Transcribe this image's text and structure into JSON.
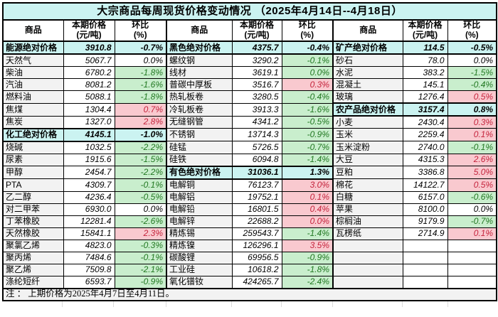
{
  "title": "大宗商品每周现货价格变动情况 （2025年4月14日--4月18日）",
  "columns": {
    "name": "商品",
    "price_line1": "本期价格",
    "price_line2": "(元/吨)",
    "pct_line1": "环比",
    "pct_line2": "(%)"
  },
  "footer": {
    "note": "注 ： 上期价格为2025年4月7日至4月11日。"
  },
  "colors": {
    "section_bg": "#cbf3f1",
    "title_bg": "#cbf3f1",
    "increase_bg": "#f9c9cf",
    "increase_text": "#c5233c",
    "decrease_bg": "#c9eecd",
    "decrease_text": "#217821",
    "name_column_bg": "#f2f2f2",
    "border": "#000000"
  },
  "groups": [
    {
      "rows": [
        {
          "name": "能源绝对价格",
          "price": "3910.8",
          "pct": "-0.7%",
          "type": "section"
        },
        {
          "name": "天然气",
          "price": "5067.7",
          "pct": "0.0%",
          "type": "flat"
        },
        {
          "name": "柴油",
          "price": "6780.2",
          "pct": "-1.8%",
          "type": "down"
        },
        {
          "name": "汽油",
          "price": "8081.2",
          "pct": "-1.6%",
          "type": "down"
        },
        {
          "name": "燃料油",
          "price": "5088.1",
          "pct": "-1.8%",
          "type": "down"
        },
        {
          "name": "焦煤",
          "price": "1304.4",
          "pct": "0.7%",
          "type": "up"
        },
        {
          "name": "焦炭",
          "price": "1327.0",
          "pct": "2.8%",
          "type": "up"
        },
        {
          "name": "化工绝对价格",
          "price": "4145.1",
          "pct": "-1.0%",
          "type": "section"
        },
        {
          "name": "烧碱",
          "price": "1032.5",
          "pct": "-2.2%",
          "type": "down"
        },
        {
          "name": "尿素",
          "price": "1915.6",
          "pct": "-1.5%",
          "type": "down"
        },
        {
          "name": "甲醇",
          "price": "2454.7",
          "pct": "-2.2%",
          "type": "down"
        },
        {
          "name": "PTA",
          "price": "4309.7",
          "pct": "-0.1%",
          "type": "down"
        },
        {
          "name": "乙二醇",
          "price": "4236.4",
          "pct": "-0.5%",
          "type": "down"
        },
        {
          "name": "对二甲苯",
          "price": "6930.0",
          "pct": "0.0%",
          "type": "flat"
        },
        {
          "name": "丁苯橡胶",
          "price": "12281.4",
          "pct": "-2.6%",
          "type": "down"
        },
        {
          "name": "天然橡胶",
          "price": "15841.1",
          "pct": "2.3%",
          "type": "up"
        },
        {
          "name": "聚氯乙烯",
          "price": "4823.0",
          "pct": "-0.3%",
          "type": "down"
        },
        {
          "name": "聚丙烯",
          "price": "7484.6",
          "pct": "-0.1%",
          "type": "down"
        },
        {
          "name": "聚乙烯",
          "price": "7509.8",
          "pct": "-2.1%",
          "type": "down"
        },
        {
          "name": "涤纶短纤",
          "price": "6593.7",
          "pct": "-0.9%",
          "type": "down"
        }
      ]
    },
    {
      "rows": [
        {
          "name": "黑色绝对价格",
          "price": "4375.7",
          "pct": "-0.4%",
          "type": "section"
        },
        {
          "name": "螺纹钢",
          "price": "3290.2",
          "pct": "-0.1%",
          "type": "down"
        },
        {
          "name": "线材",
          "price": "3619.1",
          "pct": "0.0%",
          "type": "down"
        },
        {
          "name": "普碳中厚板",
          "price": "3516.7",
          "pct": "0.3%",
          "type": "up"
        },
        {
          "name": "热轧板卷",
          "price": "3280.5",
          "pct": "-0.4%",
          "type": "down"
        },
        {
          "name": "冷轧板卷",
          "price": "3913.3",
          "pct": "-1.6%",
          "type": "down"
        },
        {
          "name": "无缝钢管",
          "price": "4341.2",
          "pct": "-0.5%",
          "type": "down"
        },
        {
          "name": "不锈钢",
          "price": "13714.3",
          "pct": "-0.9%",
          "type": "down"
        },
        {
          "name": "硅锰",
          "price": "5726.5",
          "pct": "-0.7%",
          "type": "down"
        },
        {
          "name": "硅铁",
          "price": "6094.8",
          "pct": "-1.4%",
          "type": "down"
        },
        {
          "name": "有色绝对价格",
          "price": "31036.1",
          "pct": "1.3%",
          "type": "section"
        },
        {
          "name": "电解铜",
          "price": "76123.7",
          "pct": "3.0%",
          "type": "up"
        },
        {
          "name": "电解铝",
          "price": "19752.1",
          "pct": "0.1%",
          "type": "up"
        },
        {
          "name": "电解铅",
          "price": "16801.5",
          "pct": "0.4%",
          "type": "up"
        },
        {
          "name": "电解锌",
          "price": "22688.2",
          "pct": "0.0%",
          "type": "up"
        },
        {
          "name": "精炼锡",
          "price": "259543.7",
          "pct": "-1.4%",
          "type": "down"
        },
        {
          "name": "精炼镍",
          "price": "126296.1",
          "pct": "3.5%",
          "type": "up"
        },
        {
          "name": "碳酸锂",
          "price": "69956.5",
          "pct": "-0.9%",
          "type": "down"
        },
        {
          "name": "工业硅",
          "price": "10618.2",
          "pct": "-1.8%",
          "type": "down"
        },
        {
          "name": "氧化镨钕",
          "price": "424265.7",
          "pct": "-2.4%",
          "type": "down"
        }
      ]
    },
    {
      "rows": [
        {
          "name": "矿产绝对价格",
          "price": "114.5",
          "pct": "-0.5%",
          "type": "section"
        },
        {
          "name": "砂石",
          "price": "78.0",
          "pct": "0.0%",
          "type": "flat"
        },
        {
          "name": "水泥",
          "price": "383.2",
          "pct": "-1.5%",
          "type": "down"
        },
        {
          "name": "混凝土",
          "price": "145.1",
          "pct": "-0.4%",
          "type": "down"
        },
        {
          "name": "玻璃",
          "price": "1276.4",
          "pct": "0.5%",
          "type": "up"
        },
        {
          "name": "农产品绝对价格",
          "price": "3157.4",
          "pct": "0.8%",
          "type": "section"
        },
        {
          "name": "小麦",
          "price": "2430.4",
          "pct": "0.3%",
          "type": "up"
        },
        {
          "name": "玉米",
          "price": "2259.4",
          "pct": "0.1%",
          "type": "up"
        },
        {
          "name": "玉米淀粉",
          "price": "2740.0",
          "pct": "-0.1%",
          "type": "down"
        },
        {
          "name": "大豆",
          "price": "4315.3",
          "pct": "2.6%",
          "type": "up"
        },
        {
          "name": "豆粕",
          "price": "3386.8",
          "pct": "5.0%",
          "type": "up"
        },
        {
          "name": "棉花",
          "price": "14122.7",
          "pct": "0.5%",
          "type": "up"
        },
        {
          "name": "白糖",
          "price": "6157.0",
          "pct": "-0.6%",
          "type": "down"
        },
        {
          "name": "苹果",
          "price": "8100.0",
          "pct": "0.0%",
          "type": "flat"
        },
        {
          "name": "棕榈油",
          "price": "9179.9",
          "pct": "-0.7%",
          "type": "down"
        },
        {
          "name": "瓦楞纸",
          "price": "2714.9",
          "pct": "0.1%",
          "type": "up"
        },
        {
          "name": "",
          "price": "",
          "pct": "",
          "type": "empty"
        },
        {
          "name": "",
          "price": "",
          "pct": "",
          "type": "empty"
        },
        {
          "name": "",
          "price": "",
          "pct": "",
          "type": "empty"
        },
        {
          "name": "",
          "price": "",
          "pct": "",
          "type": "empty"
        }
      ]
    }
  ]
}
